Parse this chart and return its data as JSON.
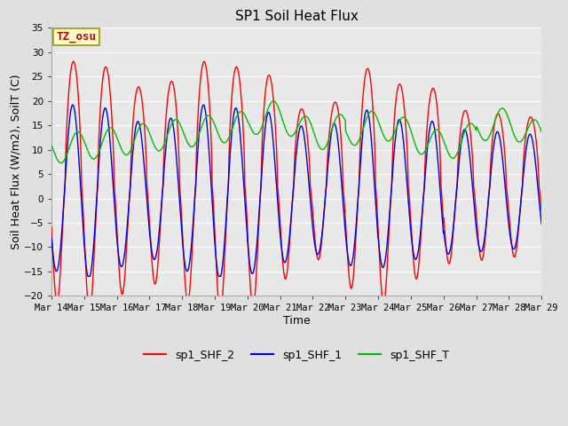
{
  "title": "SP1 Soil Heat Flux",
  "xlabel": "Time",
  "ylabel": "Soil Heat Flux (W/m2), SoilT (C)",
  "ylim": [
    -20,
    35
  ],
  "xlim": [
    0,
    15
  ],
  "x_tick_labels": [
    "Mar 14",
    "Mar 15",
    "Mar 16",
    "Mar 17",
    "Mar 18",
    "Mar 19",
    "Mar 20",
    "Mar 21",
    "Mar 22",
    "Mar 23",
    "Mar 24",
    "Mar 25",
    "Mar 26",
    "Mar 27",
    "Mar 28",
    "Mar 29"
  ],
  "annotation_text": "TZ_osu",
  "annotation_color": "#cc0000",
  "annotation_bg": "#ffffcc",
  "annotation_border": "#999900",
  "line_colors": {
    "sp1_SHF_2": "#ff0000",
    "sp1_SHF_1": "#0000dd",
    "sp1_SHF_T": "#00bb00"
  },
  "legend_labels": [
    "sp1_SHF_2",
    "sp1_SHF_1",
    "sp1_SHF_T"
  ],
  "bg_color": "#e0e0e0",
  "plot_bg": "#e8e8e8",
  "grid_color": "#ffffff",
  "title_fontsize": 11,
  "axis_label_fontsize": 9,
  "tick_fontsize": 7.5
}
